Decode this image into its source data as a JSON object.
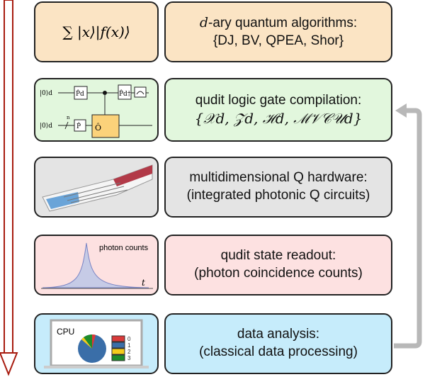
{
  "rows": [
    {
      "line1_italic": "d",
      "line1": "-ary quantum algorithms:",
      "line2": "{DJ, BV, QPEA, Shor}",
      "color": "#fbe4c4",
      "left_formula": "∑ |x⟩|f(x)⟩"
    },
    {
      "line1": "qudit logic gate compilation:",
      "line2": "{𝒳d, 𝒵d, ℋd, ℳ𝒱𝒞𝒰d}",
      "color": "#e2f7dd",
      "circuit": {
        "input": "|0⟩d",
        "gates": [
          "P̂d",
          "P̂d†",
          "P̂",
          "Ô"
        ],
        "n": "n"
      }
    },
    {
      "line1": "multidimensional Q hardware:",
      "line2": "(integrated photonic Q circuits)",
      "color": "#e4e4e4"
    },
    {
      "line1": "qudit state readout:",
      "line2": "(photon coincidence counts)",
      "color": "#fde1e1",
      "plot": {
        "label": "photon counts",
        "axis": "t"
      }
    },
    {
      "line1": "data analysis:",
      "line2": "(classical data processing)",
      "color": "#c6ecfb",
      "pie": {
        "title": "CPU",
        "legend": [
          "0",
          "1",
          "2",
          "3"
        ],
        "colors": [
          "#d93a3a",
          "#3a6ea8",
          "#f5cc1a",
          "#1e8c2a"
        ]
      }
    }
  ],
  "arrow_colors": {
    "flow": "#a81c10",
    "feedback": "#b8b8b8"
  }
}
